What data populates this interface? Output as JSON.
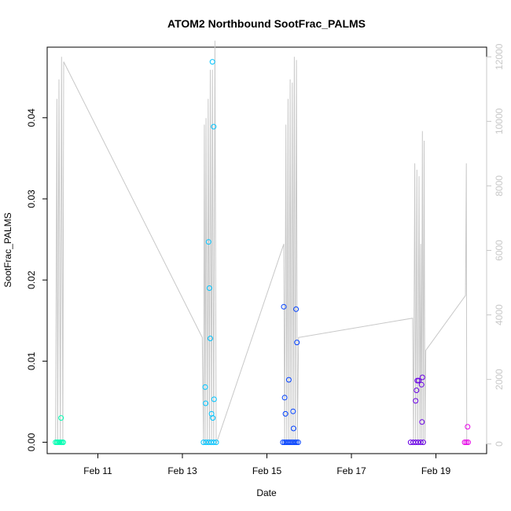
{
  "chart_data": {
    "type": "scatter",
    "title": "ATOM2 Northbound SootFrac_PALMS",
    "xlabel": "Date",
    "ylabel": "SootFrac_PALMS",
    "xlim": [
      9.8,
      20.2
    ],
    "ylim": [
      -0.0014,
      0.0487
    ],
    "y2lim": [
      -300,
      12300
    ],
    "x_ticks": [
      {
        "value": 11,
        "label": "Feb 11"
      },
      {
        "value": 13,
        "label": "Feb 13"
      },
      {
        "value": 15,
        "label": "Feb 15"
      },
      {
        "value": 17,
        "label": "Feb 17"
      },
      {
        "value": 19,
        "label": "Feb 19"
      }
    ],
    "y_ticks": [
      {
        "value": 0.0,
        "label": "0.00"
      },
      {
        "value": 0.01,
        "label": "0.01"
      },
      {
        "value": 0.02,
        "label": "0.02"
      },
      {
        "value": 0.03,
        "label": "0.03"
      },
      {
        "value": 0.04,
        "label": "0.04"
      }
    ],
    "y2_ticks": [
      {
        "value": 0,
        "label": "0"
      },
      {
        "value": 2000,
        "label": "2000"
      },
      {
        "value": 4000,
        "label": "4000"
      },
      {
        "value": 6000,
        "label": "6000"
      },
      {
        "value": 8000,
        "label": "8000"
      },
      {
        "value": 10000,
        "label": "10000"
      },
      {
        "value": 12000,
        "label": "12000"
      }
    ],
    "grid": false,
    "altitude_trace": {
      "color": "#c8c8c8",
      "points": [
        [
          10.0,
          0
        ],
        [
          10.03,
          10700
        ],
        [
          10.05,
          0
        ],
        [
          10.08,
          11300
        ],
        [
          10.11,
          0
        ],
        [
          10.14,
          12000
        ],
        [
          10.17,
          0
        ],
        [
          10.19,
          11850
        ],
        [
          13.47,
          3300
        ],
        [
          13.5,
          0
        ],
        [
          13.52,
          9900
        ],
        [
          13.54,
          0
        ],
        [
          13.56,
          10100
        ],
        [
          13.59,
          0
        ],
        [
          13.61,
          10700
        ],
        [
          13.64,
          0
        ],
        [
          13.66,
          11600
        ],
        [
          13.69,
          0
        ],
        [
          13.71,
          11600
        ],
        [
          13.74,
          0
        ],
        [
          13.77,
          12500
        ],
        [
          13.8,
          0
        ],
        [
          15.4,
          6200
        ],
        [
          15.42,
          0
        ],
        [
          15.45,
          9900
        ],
        [
          15.47,
          0
        ],
        [
          15.5,
          10700
        ],
        [
          15.52,
          0
        ],
        [
          15.55,
          11300
        ],
        [
          15.57,
          0
        ],
        [
          15.6,
          11200
        ],
        [
          15.62,
          0
        ],
        [
          15.65,
          12000
        ],
        [
          15.67,
          0
        ],
        [
          15.7,
          11900
        ],
        [
          15.72,
          0
        ],
        [
          15.75,
          3300
        ],
        [
          18.45,
          3900
        ],
        [
          18.47,
          0
        ],
        [
          18.5,
          8700
        ],
        [
          18.52,
          0
        ],
        [
          18.55,
          8500
        ],
        [
          18.57,
          0
        ],
        [
          18.6,
          8300
        ],
        [
          18.62,
          0
        ],
        [
          18.64,
          6200
        ],
        [
          18.66,
          0
        ],
        [
          18.68,
          9700
        ],
        [
          18.7,
          0
        ],
        [
          18.72,
          9400
        ],
        [
          18.74,
          0
        ],
        [
          18.76,
          2900
        ],
        [
          19.7,
          4600
        ],
        [
          19.72,
          8700
        ],
        [
          19.73,
          0
        ]
      ]
    },
    "series": [
      {
        "color": "#00ffb2",
        "points": [
          [
            10.0,
            0
          ],
          [
            10.03,
            0
          ],
          [
            10.06,
            0
          ],
          [
            10.09,
            0
          ],
          [
            10.12,
            0
          ],
          [
            10.15,
            0
          ],
          [
            10.18,
            0
          ],
          [
            10.13,
            0.003
          ]
        ]
      },
      {
        "color": "#00c4ff",
        "points": [
          [
            13.5,
            0
          ],
          [
            13.56,
            0
          ],
          [
            13.62,
            0
          ],
          [
            13.68,
            0
          ],
          [
            13.74,
            0
          ],
          [
            13.8,
            0
          ],
          [
            13.54,
            0.0068
          ],
          [
            13.55,
            0.0048
          ],
          [
            13.62,
            0.0247
          ],
          [
            13.64,
            0.019
          ],
          [
            13.66,
            0.0128
          ],
          [
            13.69,
            0.0035
          ],
          [
            13.72,
            0.003
          ],
          [
            13.75,
            0.0053
          ],
          [
            13.74,
            0.0389
          ],
          [
            13.71,
            0.0469
          ]
        ]
      },
      {
        "color": "#0040ff",
        "points": [
          [
            15.38,
            0
          ],
          [
            15.42,
            0
          ],
          [
            15.46,
            0
          ],
          [
            15.5,
            0
          ],
          [
            15.54,
            0
          ],
          [
            15.58,
            0
          ],
          [
            15.62,
            0
          ],
          [
            15.66,
            0
          ],
          [
            15.7,
            0
          ],
          [
            15.74,
            0
          ],
          [
            15.4,
            0.0167
          ],
          [
            15.42,
            0.0055
          ],
          [
            15.44,
            0.0035
          ],
          [
            15.52,
            0.0077
          ],
          [
            15.62,
            0.0038
          ],
          [
            15.63,
            0.0017
          ],
          [
            15.69,
            0.0164
          ],
          [
            15.71,
            0.0123
          ]
        ]
      },
      {
        "color": "#6a00e6",
        "points": [
          [
            18.4,
            0
          ],
          [
            18.46,
            0
          ],
          [
            18.52,
            0
          ],
          [
            18.58,
            0
          ],
          [
            18.64,
            0
          ],
          [
            18.7,
            0
          ],
          [
            18.52,
            0.0051
          ],
          [
            18.54,
            0.0064
          ],
          [
            18.56,
            0.0076
          ],
          [
            18.59,
            0.0076
          ],
          [
            18.66,
            0.0071
          ],
          [
            18.68,
            0.008
          ],
          [
            18.67,
            0.0025
          ]
        ]
      },
      {
        "color": "#e600e6",
        "points": [
          [
            19.68,
            0
          ],
          [
            19.72,
            0
          ],
          [
            19.76,
            0
          ],
          [
            19.75,
            0.0019
          ]
        ]
      }
    ]
  }
}
